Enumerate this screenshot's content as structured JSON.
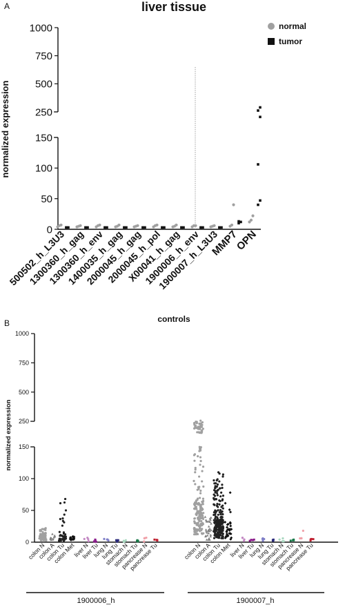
{
  "panel_letters": {
    "a": "A",
    "b": "B"
  },
  "chart_data": [
    {
      "type": "scatter",
      "panel": "A",
      "title": "liver tissue",
      "ylabel": "normalized expression",
      "xlabel": "",
      "y_scale": "segmented (broken axis)",
      "y_segments": [
        [
          0,
          150
        ],
        [
          250,
          1000
        ]
      ],
      "yticks_lower": [
        0,
        50,
        100,
        150
      ],
      "yticks_upper": [
        250,
        500,
        750,
        1000
      ],
      "legend": {
        "position": "top-right",
        "entries": [
          {
            "label": "normal",
            "marker": "circle",
            "color": "#a0a0a0"
          },
          {
            "label": "tumor",
            "marker": "square",
            "color": "#111111"
          }
        ]
      },
      "divider_after_category_index": 6,
      "categories": [
        "500502_h_L3U3",
        "1300360_h_gag",
        "1300360_h_env",
        "1400035_h_gag",
        "2000045_h_gag",
        "2000045_h_pol",
        "X00041_h_gag",
        "1900006_h_env",
        "1900007_h_L3U3",
        "MMP7",
        "OPN"
      ],
      "series": [
        {
          "name": "normal",
          "values": [
            [
              4,
              6,
              7
            ],
            [
              4,
              5,
              6
            ],
            [
              4,
              6,
              7
            ],
            [
              4,
              5,
              7
            ],
            [
              4,
              5,
              6
            ],
            [
              4,
              6,
              7
            ],
            [
              4,
              5,
              7
            ],
            [
              4,
              6,
              6
            ],
            [
              4,
              5,
              6
            ],
            [
              5,
              7,
              40
            ],
            [
              12,
              15,
              22
            ]
          ]
        },
        {
          "name": "tumor",
          "values": [
            [
              3,
              3,
              3
            ],
            [
              3,
              3,
              3
            ],
            [
              3,
              3,
              3
            ],
            [
              3,
              3,
              3
            ],
            [
              3,
              3,
              3
            ],
            [
              3,
              3,
              3
            ],
            [
              3,
              3,
              3
            ],
            [
              3,
              3,
              3
            ],
            [
              3,
              3,
              3
            ],
            [
              10,
              12,
              13
            ],
            [
              40,
              47,
              106,
              205,
              262,
              290
            ]
          ]
        }
      ]
    },
    {
      "type": "scatter",
      "panel": "B",
      "title": "controls",
      "ylabel": "normalized expression",
      "xlabel": "",
      "y_scale": "segmented (broken axis)",
      "y_segments": [
        [
          0,
          150
        ],
        [
          250,
          1000
        ]
      ],
      "yticks_lower": [
        0,
        50,
        100,
        150
      ],
      "yticks_upper": [
        250,
        500,
        750,
        1000
      ],
      "group_labels": [
        "1900006_h",
        "1900007_h"
      ],
      "categories": [
        "colon N",
        "colon A",
        "colon Tu",
        "colon Met",
        "liver N",
        "liver Tu",
        "lung N",
        "lung Tu",
        "stomach N",
        "stomach Tu",
        "pancrease N",
        "pancrease Tu"
      ],
      "category_colors": [
        "#a0a0a0",
        "#808080",
        "#222222",
        "#111111",
        "#c48ac4",
        "#8a1a8a",
        "#8080c8",
        "#2a2a7a",
        "#a8d8c0",
        "#1a7a4a",
        "#f0a0a8",
        "#c02030"
      ],
      "groups": [
        {
          "name": "1900006_h",
          "summary": [
            {
              "category": "colon N",
              "n": 60,
              "median": 10,
              "max": 22
            },
            {
              "category": "colon A",
              "n": 10,
              "median": 6,
              "max": 13
            },
            {
              "category": "colon Tu",
              "n": 40,
              "median": 10,
              "max": 68
            },
            {
              "category": "colon Met",
              "n": 15,
              "median": 5,
              "max": 9
            },
            {
              "category": "liver N",
              "n": 4,
              "median": 5,
              "max": 7
            },
            {
              "category": "liver Tu",
              "n": 4,
              "median": 3,
              "max": 4
            },
            {
              "category": "lung N",
              "n": 4,
              "median": 4,
              "max": 5
            },
            {
              "category": "lung Tu",
              "n": 4,
              "median": 3,
              "max": 3
            },
            {
              "category": "stomach N",
              "n": 4,
              "median": 2,
              "max": 3
            },
            {
              "category": "stomach Tu",
              "n": 4,
              "median": 2,
              "max": 3
            },
            {
              "category": "pancrease N",
              "n": 4,
              "median": 5,
              "max": 7
            },
            {
              "category": "pancrease Tu",
              "n": 4,
              "median": 3,
              "max": 4
            }
          ]
        },
        {
          "name": "1900007_h",
          "summary": [
            {
              "category": "colon N",
              "n": 200,
              "median": 60,
              "max": 255
            },
            {
              "category": "colon A",
              "n": 30,
              "median": 18,
              "max": 40
            },
            {
              "category": "colon Tu",
              "n": 200,
              "median": 30,
              "max": 110
            },
            {
              "category": "colon Met",
              "n": 30,
              "median": 20,
              "max": 78
            },
            {
              "category": "liver N",
              "n": 4,
              "median": 5,
              "max": 7
            },
            {
              "category": "liver Tu",
              "n": 4,
              "median": 3,
              "max": 4
            },
            {
              "category": "lung N",
              "n": 4,
              "median": 5,
              "max": 6
            },
            {
              "category": "lung Tu",
              "n": 4,
              "median": 3,
              "max": 4
            },
            {
              "category": "stomach N",
              "n": 4,
              "median": 4,
              "max": 6
            },
            {
              "category": "stomach Tu",
              "n": 4,
              "median": 3,
              "max": 4
            },
            {
              "category": "pancrease N",
              "n": 4,
              "median": 6,
              "max": 18
            },
            {
              "category": "pancrease Tu",
              "n": 4,
              "median": 3,
              "max": 5
            }
          ]
        }
      ]
    }
  ]
}
